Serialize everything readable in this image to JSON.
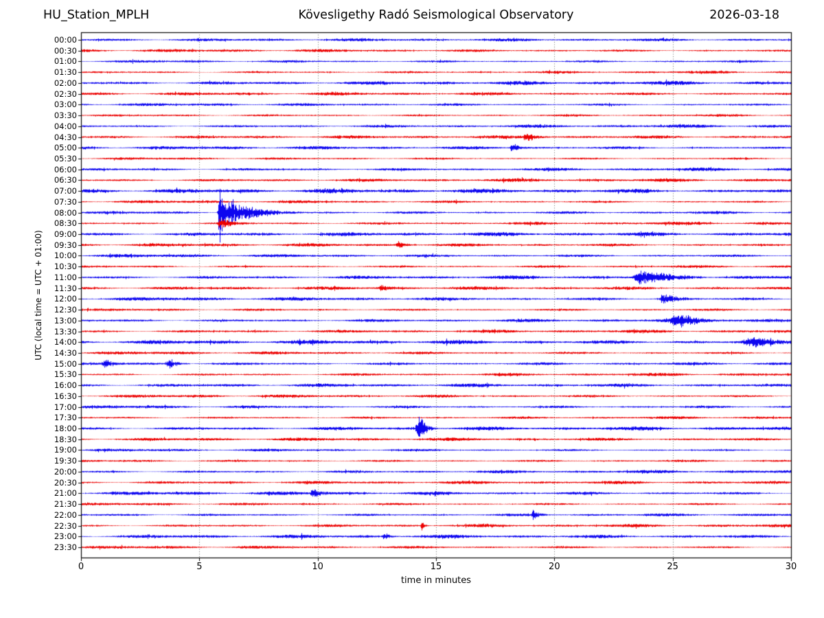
{
  "header": {
    "station": "HU_Station_MPLH",
    "observatory": "Kövesligethy Radó Seismological Observatory",
    "date": "2026-03-18"
  },
  "axes": {
    "x_label": "time in minutes",
    "y_label": "UTC (local time = UTC + 01:00)",
    "x_ticks": [
      0,
      5,
      10,
      15,
      20,
      25,
      30
    ],
    "x_range": [
      0,
      30
    ],
    "grid_minutes": [
      5,
      10,
      15,
      20,
      25
    ],
    "grid_style": "dotted-vertical"
  },
  "colors": {
    "trace_blue": "#0d06f0",
    "trace_red": "#ec0000",
    "frame": "#000000",
    "grid": "#444444",
    "background": "#ffffff",
    "text": "#000000"
  },
  "chart_data": {
    "type": "line",
    "subtype": "helicorder-dayplot",
    "title": "HU_Station_MPLH  Kövesligethy Radó Seismological Observatory  2026-03-18",
    "xlabel": "time in minutes",
    "ylabel": "UTC (local time = UTC + 01:00)",
    "xlim": [
      0,
      30
    ],
    "minutes_per_line": 30,
    "grid": true,
    "legend": "none",
    "rows": [
      {
        "label": "00:00",
        "color": "blue",
        "noise_amp": 2.3
      },
      {
        "label": "00:30",
        "color": "red",
        "noise_amp": 2.4
      },
      {
        "label": "01:00",
        "color": "blue",
        "noise_amp": 2.5
      },
      {
        "label": "01:30",
        "color": "red",
        "noise_amp": 2.4
      },
      {
        "label": "02:00",
        "color": "blue",
        "noise_amp": 2.9
      },
      {
        "label": "02:30",
        "color": "red",
        "noise_amp": 2.4
      },
      {
        "label": "03:00",
        "color": "blue",
        "noise_amp": 2.5
      },
      {
        "label": "03:30",
        "color": "red",
        "noise_amp": 2.4
      },
      {
        "label": "04:00",
        "color": "blue",
        "noise_amp": 2.7
      },
      {
        "label": "04:30",
        "color": "red",
        "noise_amp": 2.4
      },
      {
        "label": "05:00",
        "color": "blue",
        "noise_amp": 2.6
      },
      {
        "label": "05:30",
        "color": "red",
        "noise_amp": 2.3
      },
      {
        "label": "06:00",
        "color": "blue",
        "noise_amp": 3.1
      },
      {
        "label": "06:30",
        "color": "red",
        "noise_amp": 2.6
      },
      {
        "label": "07:00",
        "color": "blue",
        "noise_amp": 3.3
      },
      {
        "label": "07:30",
        "color": "red",
        "noise_amp": 2.4
      },
      {
        "label": "08:00",
        "color": "blue",
        "noise_amp": 3.0
      },
      {
        "label": "08:30",
        "color": "red",
        "noise_amp": 2.6
      },
      {
        "label": "09:00",
        "color": "blue",
        "noise_amp": 3.0
      },
      {
        "label": "09:30",
        "color": "red",
        "noise_amp": 2.5
      },
      {
        "label": "10:00",
        "color": "blue",
        "noise_amp": 3.0
      },
      {
        "label": "10:30",
        "color": "red",
        "noise_amp": 2.5
      },
      {
        "label": "11:00",
        "color": "blue",
        "noise_amp": 3.0
      },
      {
        "label": "11:30",
        "color": "red",
        "noise_amp": 2.5
      },
      {
        "label": "12:00",
        "color": "blue",
        "noise_amp": 2.9
      },
      {
        "label": "12:30",
        "color": "red",
        "noise_amp": 2.5
      },
      {
        "label": "13:00",
        "color": "blue",
        "noise_amp": 3.1
      },
      {
        "label": "13:30",
        "color": "red",
        "noise_amp": 2.4
      },
      {
        "label": "14:00",
        "color": "blue",
        "noise_amp": 3.2
      },
      {
        "label": "14:30",
        "color": "red",
        "noise_amp": 2.7
      },
      {
        "label": "15:00",
        "color": "blue",
        "noise_amp": 3.0
      },
      {
        "label": "15:30",
        "color": "red",
        "noise_amp": 2.4
      },
      {
        "label": "16:00",
        "color": "blue",
        "noise_amp": 2.6
      },
      {
        "label": "16:30",
        "color": "red",
        "noise_amp": 2.4
      },
      {
        "label": "17:00",
        "color": "blue",
        "noise_amp": 2.9
      },
      {
        "label": "17:30",
        "color": "red",
        "noise_amp": 2.4
      },
      {
        "label": "18:00",
        "color": "blue",
        "noise_amp": 2.9
      },
      {
        "label": "18:30",
        "color": "red",
        "noise_amp": 2.5
      },
      {
        "label": "19:00",
        "color": "blue",
        "noise_amp": 2.3
      },
      {
        "label": "19:30",
        "color": "red",
        "noise_amp": 2.4
      },
      {
        "label": "20:00",
        "color": "blue",
        "noise_amp": 2.7
      },
      {
        "label": "20:30",
        "color": "red",
        "noise_amp": 2.4
      },
      {
        "label": "21:00",
        "color": "blue",
        "noise_amp": 2.8
      },
      {
        "label": "21:30",
        "color": "red",
        "noise_amp": 2.4
      },
      {
        "label": "22:00",
        "color": "blue",
        "noise_amp": 2.7
      },
      {
        "label": "22:30",
        "color": "red",
        "noise_amp": 2.4
      },
      {
        "label": "23:00",
        "color": "blue",
        "noise_amp": 2.7
      },
      {
        "label": "23:30",
        "color": "red",
        "noise_amp": 2.4
      }
    ],
    "events": [
      {
        "row": "04:30",
        "minute": 18.8,
        "amp": 7,
        "rise": 0.1,
        "fall": 0.35
      },
      {
        "row": "05:00",
        "minute": 18.2,
        "amp": 8,
        "rise": 0.08,
        "fall": 0.25
      },
      {
        "row": "08:00",
        "minute": 5.85,
        "amp": 46,
        "rise": 0.06,
        "fall": 0.22
      },
      {
        "row": "08:00",
        "minute": 6.35,
        "amp": 17,
        "rise": 0.15,
        "fall": 0.45
      },
      {
        "row": "08:00",
        "minute": 7.1,
        "amp": 7,
        "rise": 0.3,
        "fall": 0.8
      },
      {
        "row": "08:30",
        "minute": 5.9,
        "amp": 7,
        "rise": 0.12,
        "fall": 0.45
      },
      {
        "row": "09:30",
        "minute": 13.4,
        "amp": 5,
        "rise": 0.1,
        "fall": 0.3
      },
      {
        "row": "11:00",
        "minute": 23.6,
        "amp": 9,
        "rise": 0.2,
        "fall": 0.9
      },
      {
        "row": "11:30",
        "minute": 12.7,
        "amp": 4,
        "rise": 0.1,
        "fall": 0.25
      },
      {
        "row": "12:00",
        "minute": 24.6,
        "amp": 8,
        "rise": 0.15,
        "fall": 0.5
      },
      {
        "row": "13:00",
        "minute": 25.2,
        "amp": 8,
        "rise": 0.25,
        "fall": 0.9
      },
      {
        "row": "14:00",
        "minute": 28.4,
        "amp": 6,
        "rise": 0.4,
        "fall": 1.0
      },
      {
        "row": "15:00",
        "minute": 1.0,
        "amp": 6,
        "rise": 0.1,
        "fall": 0.3
      },
      {
        "row": "15:00",
        "minute": 3.7,
        "amp": 8,
        "rise": 0.1,
        "fall": 0.3
      },
      {
        "row": "18:00",
        "minute": 14.3,
        "amp": 22,
        "rise": 0.07,
        "fall": 0.2
      },
      {
        "row": "18:00",
        "minute": 14.15,
        "amp": 10,
        "rise": 0.04,
        "fall": 0.08
      },
      {
        "row": "21:00",
        "minute": 9.8,
        "amp": 8,
        "rise": 0.08,
        "fall": 0.25
      },
      {
        "row": "22:00",
        "minute": 19.1,
        "amp": 7,
        "rise": 0.06,
        "fall": 0.2
      },
      {
        "row": "22:30",
        "minute": 14.4,
        "amp": 9,
        "rise": 0.04,
        "fall": 0.08
      },
      {
        "row": "23:00",
        "minute": 12.8,
        "amp": 5,
        "rise": 0.06,
        "fall": 0.2
      }
    ]
  }
}
